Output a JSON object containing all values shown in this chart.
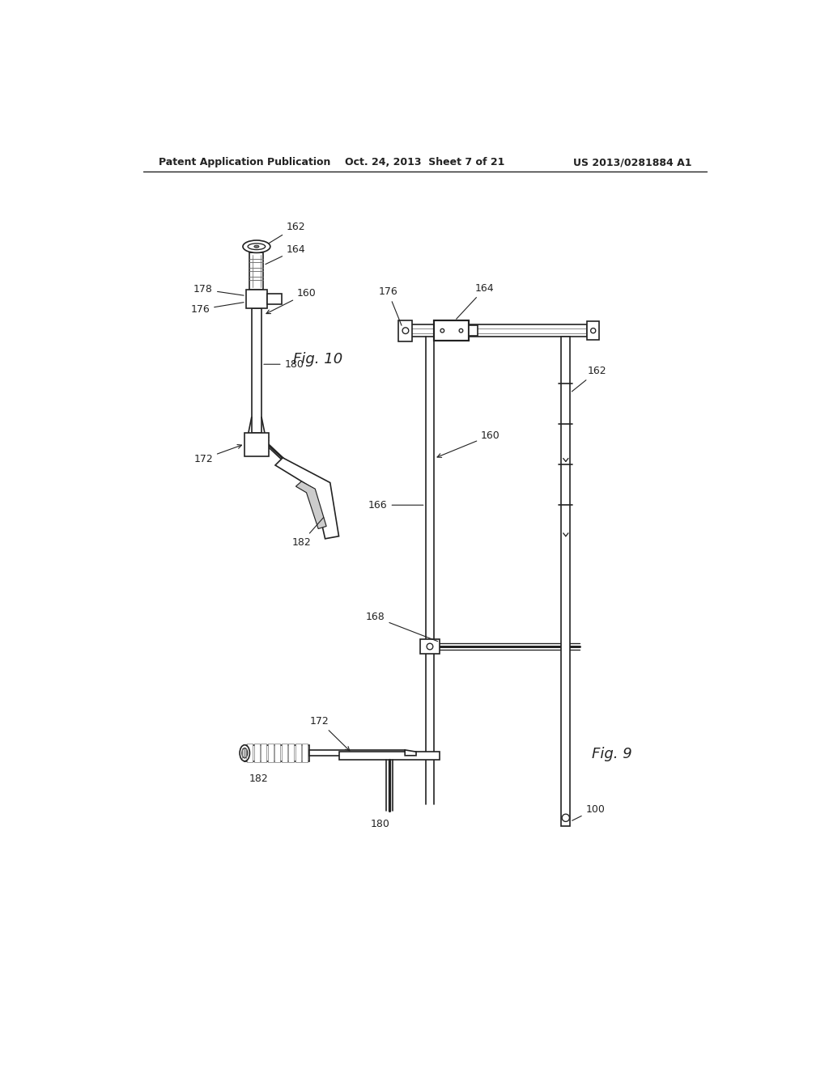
{
  "background_color": "#ffffff",
  "header_left": "Patent Application Publication",
  "header_center": "Oct. 24, 2013  Sheet 7 of 21",
  "header_right": "US 2013/0281884 A1",
  "fig9_label": "Fig. 9",
  "fig10_label": "Fig. 10",
  "line_color": "#222222",
  "gray_color": "#777777",
  "light_gray": "#aaaaaa"
}
